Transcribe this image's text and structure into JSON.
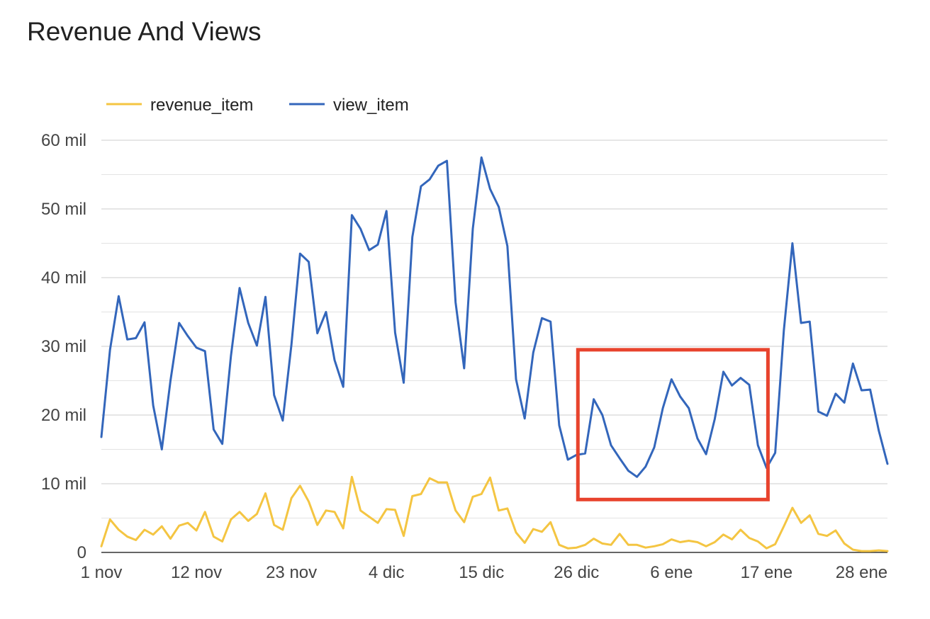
{
  "chart_data": {
    "type": "line",
    "title": "Revenue And Views",
    "x_tick_labels": [
      "1 nov",
      "12 nov",
      "23 nov",
      "4 dic",
      "15 dic",
      "26 dic",
      "6 ene",
      "17 ene",
      "28 ene"
    ],
    "y_tick_labels": [
      "0",
      "10 mil",
      "20 mil",
      "30 mil",
      "40 mil",
      "50 mil",
      "60 mil"
    ],
    "ylim": [
      0,
      60000
    ],
    "grid": true,
    "legend_position": "top-left",
    "series": [
      {
        "name": "revenue_item",
        "color": "#F4C542",
        "values": [
          900,
          4800,
          3300,
          2300,
          1800,
          3300,
          2600,
          3800,
          2000,
          3900,
          4300,
          3200,
          5900,
          2300,
          1600,
          4800,
          5900,
          4600,
          5600,
          8600,
          4000,
          3300,
          7900,
          9700,
          7400,
          4000,
          6100,
          5900,
          3500,
          11000,
          6100,
          5200,
          4300,
          6300,
          6200,
          2400,
          8200,
          8500,
          10800,
          10200,
          10200,
          6100,
          4400,
          8100,
          8500,
          10900,
          6100,
          6400,
          2900,
          1400,
          3400,
          3000,
          4400,
          1100,
          600,
          700,
          1100,
          2000,
          1300,
          1100,
          2700,
          1100,
          1100,
          700,
          900,
          1200,
          1900,
          1500,
          1700,
          1500,
          900,
          1500,
          2600,
          1900,
          3300,
          2100,
          1600,
          600,
          1200,
          3800,
          6500,
          4300,
          5400,
          2700,
          2400,
          3200,
          1300,
          400,
          200,
          200,
          300,
          200
        ]
      },
      {
        "name": "view_item",
        "color": "#3366BB",
        "values": [
          16800,
          29500,
          37300,
          31000,
          31200,
          33500,
          21400,
          15000,
          25000,
          33400,
          31500,
          29800,
          29300,
          17900,
          15800,
          28600,
          38500,
          33400,
          30100,
          37200,
          22900,
          19200,
          30200,
          43500,
          42300,
          31900,
          35000,
          28000,
          24100,
          49100,
          47100,
          44000,
          44800,
          49700,
          32000,
          24700,
          45900,
          53300,
          54300,
          56300,
          57000,
          36400,
          26800,
          47100,
          57500,
          52900,
          50300,
          44600,
          25200,
          19500,
          29100,
          34100,
          33600,
          18500,
          13500,
          14200,
          14400,
          22300,
          20000,
          15600,
          13700,
          11900,
          11000,
          12500,
          15300,
          21000,
          25200,
          22700,
          21000,
          16600,
          14300,
          19400,
          26300,
          24300,
          25400,
          24400,
          15600,
          12300,
          14500,
          32300,
          45000,
          33400,
          33600,
          20500,
          19900,
          23100,
          21800,
          27500,
          23600,
          23700,
          17700,
          12900
        ]
      }
    ],
    "annotation": {
      "type": "highlight-box",
      "color": "#E8432D",
      "x_range": [
        "26 dic",
        "17 ene"
      ],
      "y_range": [
        7700,
        29500
      ]
    }
  }
}
